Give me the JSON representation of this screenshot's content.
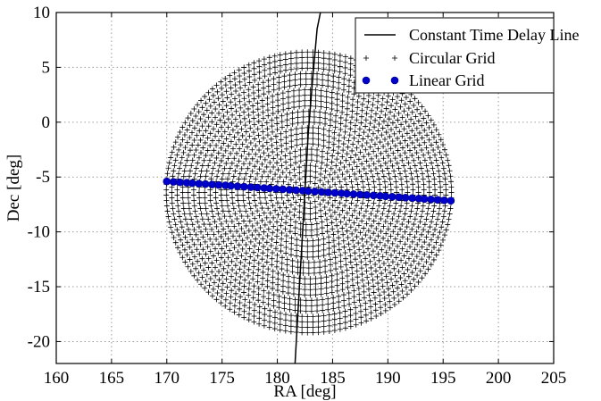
{
  "chart_data": {
    "type": "scatter",
    "xlabel": "RA [deg]",
    "ylabel": "Dec [deg]",
    "xlim": [
      160,
      205
    ],
    "ylim": [
      -22,
      10
    ],
    "xticks": [
      160,
      165,
      170,
      175,
      180,
      185,
      190,
      195,
      200,
      205
    ],
    "yticks": [
      -20,
      -15,
      -10,
      -5,
      0,
      5,
      10
    ],
    "grid": true,
    "legend_position": "top-right",
    "legend": {
      "constant_time_delay_line": "Constant Time Delay Line",
      "circular_grid": "Circular Grid",
      "linear_grid": "Linear Grid"
    },
    "colors": {
      "constant_time_delay_line": "#000000",
      "circular_grid": "#000000",
      "linear_grid": "#0000cc"
    },
    "constant_time_delay_line": {
      "x": [
        181.6,
        182.0,
        182.4,
        182.8,
        183.2,
        183.6,
        183.9
      ],
      "y": [
        -22,
        -15,
        -8,
        -1,
        4,
        8.5,
        10
      ]
    },
    "circular_grid": {
      "center": {
        "x": 182.85,
        "y": -6.4
      },
      "radius_x_deg": 12.9,
      "radius_y_deg": 12.8,
      "ra_range": [
        170,
        195.7
      ],
      "dec_range": [
        -19.2,
        6.4
      ],
      "ring_count": 26
    },
    "linear_grid": {
      "x": [
        170.0,
        170.6,
        171.2,
        171.8,
        172.3,
        172.9,
        173.5,
        174.1,
        174.7,
        175.3,
        175.8,
        176.4,
        177.0,
        177.6,
        178.2,
        178.8,
        179.3,
        179.9,
        180.5,
        181.1,
        181.7,
        182.3,
        182.8,
        183.4,
        184.0,
        184.6,
        185.2,
        185.8,
        186.3,
        186.9,
        187.5,
        188.1,
        188.7,
        189.3,
        189.8,
        190.4,
        191.0,
        191.6,
        192.2,
        192.8,
        193.3,
        193.9,
        194.5,
        195.1,
        195.7
      ],
      "y": [
        -5.4,
        -5.44,
        -5.48,
        -5.52,
        -5.56,
        -5.6,
        -5.64,
        -5.68,
        -5.72,
        -5.76,
        -5.8,
        -5.84,
        -5.88,
        -5.92,
        -5.96,
        -6.0,
        -6.04,
        -6.08,
        -6.12,
        -6.16,
        -6.2,
        -6.24,
        -6.28,
        -6.32,
        -6.36,
        -6.4,
        -6.44,
        -6.48,
        -6.52,
        -6.56,
        -6.6,
        -6.64,
        -6.68,
        -6.72,
        -6.76,
        -6.8,
        -6.84,
        -6.88,
        -6.92,
        -6.96,
        -7.0,
        -7.04,
        -7.08,
        -7.12,
        -7.16
      ]
    }
  }
}
